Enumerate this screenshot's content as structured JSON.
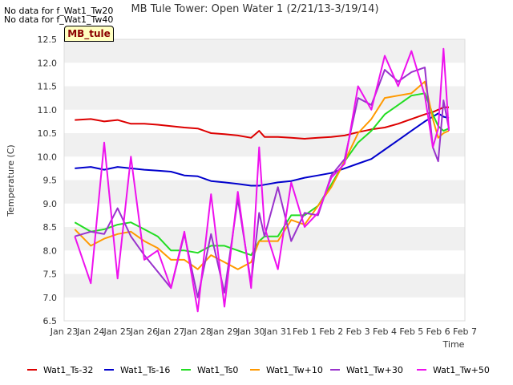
{
  "notes": [
    "No data for f_Wat1_Tw20",
    "No data for f_Wat1_Tw40"
  ],
  "badge": "MB_tule",
  "chart_data": {
    "type": "line",
    "title": "MB Tule Tower: Open Water 1 (2/21/13-3/19/14)",
    "xlabel": "Time",
    "ylabel": "Temperature (C)",
    "x_ticks": [
      "Jan 23",
      "Jan 24",
      "Jan 25",
      "Jan 26",
      "Jan 27",
      "Jan 28",
      "Jan 29",
      "Jan 30",
      "Jan 31",
      "Feb 1",
      "Feb 2",
      "Feb 3",
      "Feb 4",
      "Feb 5",
      "Feb 6",
      "Feb 7"
    ],
    "x_range_days": [
      0,
      15
    ],
    "y_ticks": [
      6.5,
      7.0,
      7.5,
      8.0,
      8.5,
      9.0,
      9.5,
      10.0,
      10.5,
      11.0,
      11.5,
      12.0,
      12.5
    ],
    "ylim": [
      6.5,
      12.5
    ],
    "grid": "horizontal bands",
    "legend_position": "bottom",
    "x_values_days_since_jan23": [
      0.4,
      1.0,
      1.5,
      2.0,
      2.5,
      3.0,
      3.5,
      4.0,
      4.5,
      5.0,
      5.5,
      6.0,
      6.5,
      7.0,
      7.3,
      7.5,
      8.0,
      8.5,
      9.0,
      9.5,
      10.0,
      10.5,
      11.0,
      11.5,
      12.0,
      12.5,
      13.0,
      13.5,
      13.8,
      14.0,
      14.2,
      14.4
    ],
    "series": [
      {
        "name": "Wat1_Ts-32",
        "color": "#dd0000",
        "values": [
          10.78,
          10.8,
          10.75,
          10.78,
          10.7,
          10.7,
          10.68,
          10.65,
          10.62,
          10.6,
          10.5,
          10.48,
          10.45,
          10.4,
          10.55,
          10.42,
          10.42,
          10.4,
          10.38,
          10.4,
          10.42,
          10.45,
          10.52,
          10.58,
          10.62,
          10.7,
          10.8,
          10.9,
          10.95,
          11.0,
          11.05,
          11.05
        ]
      },
      {
        "name": "Wat1_Ts-16",
        "color": "#0000cc",
        "values": [
          9.75,
          9.78,
          9.72,
          9.78,
          9.75,
          9.72,
          9.7,
          9.68,
          9.6,
          9.58,
          9.48,
          9.45,
          9.42,
          9.38,
          9.38,
          9.4,
          9.45,
          9.48,
          9.55,
          9.6,
          9.65,
          9.75,
          9.85,
          9.95,
          10.15,
          10.35,
          10.55,
          10.75,
          10.85,
          10.92,
          10.85,
          10.82
        ]
      },
      {
        "name": "Wat1_Ts0",
        "color": "#22dd22",
        "values": [
          8.6,
          8.4,
          8.45,
          8.55,
          8.6,
          8.45,
          8.3,
          8.0,
          8.0,
          7.95,
          8.1,
          8.1,
          8.0,
          7.9,
          8.2,
          8.3,
          8.3,
          8.75,
          8.75,
          8.95,
          9.4,
          9.9,
          10.3,
          10.55,
          10.9,
          11.1,
          11.3,
          11.35,
          10.9,
          10.65,
          10.55,
          10.6
        ]
      },
      {
        "name": "Wat1_Tw+10",
        "color": "#ff9900",
        "values": [
          8.45,
          8.1,
          8.25,
          8.35,
          8.4,
          8.2,
          8.05,
          7.8,
          7.8,
          7.6,
          7.9,
          7.75,
          7.6,
          7.75,
          8.2,
          8.2,
          8.2,
          8.65,
          8.55,
          8.95,
          9.35,
          9.9,
          10.5,
          10.8,
          11.25,
          11.3,
          11.35,
          11.6,
          10.8,
          10.4,
          10.5,
          10.55
        ]
      },
      {
        "name": "Wat1_Tw+30",
        "color": "#9933cc",
        "values": [
          8.3,
          8.4,
          8.35,
          8.9,
          8.3,
          7.9,
          7.55,
          7.2,
          8.35,
          7.0,
          8.35,
          7.1,
          9.1,
          7.3,
          8.8,
          8.3,
          9.35,
          8.2,
          8.8,
          8.75,
          9.6,
          9.95,
          11.25,
          11.1,
          11.85,
          11.6,
          11.8,
          11.9,
          10.2,
          9.9,
          11.2,
          10.6
        ]
      },
      {
        "name": "Wat1_Tw+50",
        "color": "#ee11ee",
        "values": [
          8.3,
          7.3,
          10.3,
          7.4,
          10.0,
          7.8,
          8.0,
          7.2,
          8.4,
          6.7,
          9.2,
          6.8,
          9.25,
          7.2,
          10.2,
          8.5,
          7.6,
          9.45,
          8.5,
          8.8,
          9.55,
          9.85,
          11.5,
          11.0,
          12.15,
          11.5,
          12.25,
          11.3,
          10.2,
          10.6,
          12.3,
          10.55
        ]
      }
    ]
  }
}
